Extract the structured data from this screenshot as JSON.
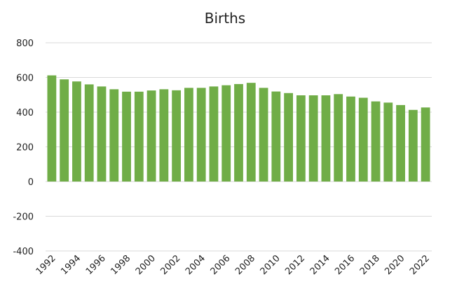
{
  "chart_data": {
    "type": "bar",
    "title": "Births",
    "xlabel": "",
    "ylabel": "",
    "ylim": [
      -400,
      800
    ],
    "yticks": [
      800,
      600,
      400,
      200,
      0,
      -200,
      -400
    ],
    "grid": true,
    "legend": "none",
    "bar_color": "#70ad47",
    "categories": [
      "1992",
      "1993",
      "1994",
      "1995",
      "1996",
      "1997",
      "1998",
      "1999",
      "2000",
      "2001",
      "2002",
      "2003",
      "2004",
      "2005",
      "2006",
      "2007",
      "2008",
      "2009",
      "2010",
      "2011",
      "2012",
      "2013",
      "2014",
      "2015",
      "2016",
      "2017",
      "2018",
      "2019",
      "2020",
      "2021",
      "2022"
    ],
    "xtick_labels": [
      "1992",
      "1994",
      "1996",
      "1998",
      "2000",
      "2002",
      "2004",
      "2006",
      "2008",
      "2010",
      "2012",
      "2014",
      "2016",
      "2018",
      "2020",
      "2022"
    ],
    "values": [
      612,
      589,
      577,
      560,
      548,
      532,
      518,
      518,
      525,
      532,
      526,
      540,
      540,
      548,
      555,
      562,
      569,
      540,
      519,
      510,
      497,
      497,
      497,
      504,
      490,
      483,
      462,
      455,
      441,
      413,
      427
    ]
  }
}
